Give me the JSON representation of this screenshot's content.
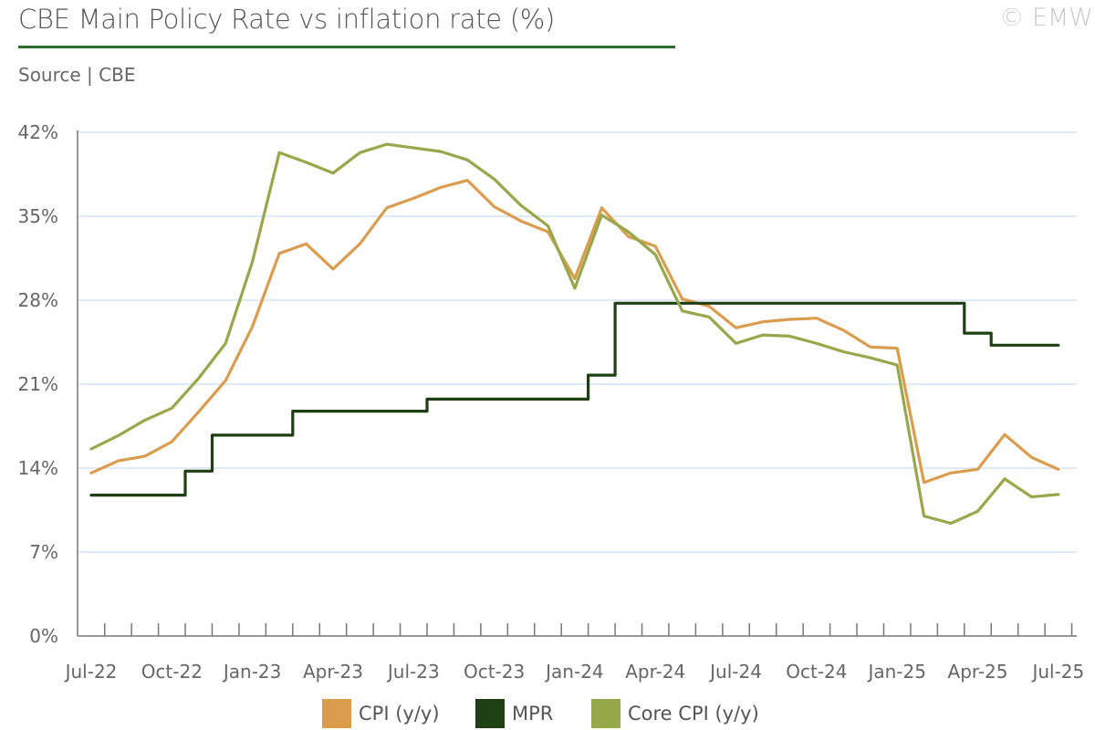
{
  "header": {
    "title": "CBE Main Policy Rate vs inflation rate (%)",
    "subtitle": "Source | CBE",
    "copyright": "© EMW"
  },
  "colors": {
    "cpi": "#dc9c4e",
    "mpr": "#1e3f12",
    "core": "#96a84a",
    "grid": "#d5e3ee",
    "axis": "#777777",
    "title_rule": "#2e6b2e"
  },
  "chart_data": {
    "type": "line",
    "title": "CBE Main Policy Rate vs inflation rate (%)",
    "xlabel": "",
    "ylabel": "",
    "ylim": [
      0,
      42
    ],
    "y_ticks": [
      "0%",
      "7%",
      "14%",
      "21%",
      "28%",
      "35%",
      "42%"
    ],
    "y_tick_values": [
      0,
      7,
      14,
      21,
      28,
      35,
      42
    ],
    "grid": true,
    "legend_position": "bottom",
    "x_tick_labels": [
      "Jul-22",
      "Oct-22",
      "Jan-23",
      "Apr-23",
      "Jul-23",
      "Oct-23",
      "Jan-24",
      "Apr-24",
      "Jul-24",
      "Oct-24",
      "Jan-25",
      "Apr-25",
      "Jul-25"
    ],
    "categories": [
      "Jul-22",
      "Aug-22",
      "Sep-22",
      "Oct-22",
      "Nov-22",
      "Dec-22",
      "Jan-23",
      "Feb-23",
      "Mar-23",
      "Apr-23",
      "May-23",
      "Jun-23",
      "Jul-23",
      "Aug-23",
      "Sep-23",
      "Oct-23",
      "Nov-23",
      "Dec-23",
      "Jan-24",
      "Feb-24",
      "Mar-24",
      "Apr-24",
      "May-24",
      "Jun-24",
      "Jul-24",
      "Aug-24",
      "Sep-24",
      "Oct-24",
      "Nov-24",
      "Dec-24",
      "Jan-25",
      "Feb-25",
      "Mar-25",
      "Apr-25",
      "May-25",
      "Jun-25",
      "Jul-25"
    ],
    "series": [
      {
        "name": "CPI (y/y)",
        "color": "#dc9c4e",
        "style": "line",
        "values": [
          13.6,
          14.6,
          15.0,
          16.2,
          18.7,
          21.3,
          25.8,
          31.9,
          32.7,
          30.6,
          32.7,
          35.7,
          36.5,
          37.4,
          38.0,
          35.8,
          34.6,
          33.7,
          29.8,
          35.7,
          33.3,
          32.5,
          28.1,
          27.5,
          25.7,
          26.2,
          26.4,
          26.5,
          25.5,
          24.1,
          24.0,
          12.8,
          13.6,
          13.9,
          16.8,
          14.9,
          13.9
        ]
      },
      {
        "name": "MPR",
        "color": "#1e3f12",
        "style": "step",
        "values": [
          11.75,
          11.75,
          11.75,
          11.75,
          13.75,
          16.75,
          16.75,
          16.75,
          18.75,
          18.75,
          18.75,
          18.75,
          18.75,
          19.75,
          19.75,
          19.75,
          19.75,
          19.75,
          19.75,
          21.75,
          27.75,
          27.75,
          27.75,
          27.75,
          27.75,
          27.75,
          27.75,
          27.75,
          27.75,
          27.75,
          27.75,
          27.75,
          27.75,
          25.25,
          24.25,
          24.25,
          24.25
        ]
      },
      {
        "name": "Core CPI (y/y)",
        "color": "#96a84a",
        "style": "line",
        "values": [
          15.6,
          16.7,
          18.0,
          19.0,
          21.5,
          24.4,
          31.2,
          40.3,
          39.5,
          38.6,
          40.3,
          41.0,
          40.7,
          40.4,
          39.7,
          38.1,
          35.9,
          34.2,
          29.0,
          35.1,
          33.7,
          31.8,
          27.1,
          26.6,
          24.4,
          25.1,
          25.0,
          24.4,
          23.7,
          23.2,
          22.6,
          10.0,
          9.4,
          10.4,
          13.1,
          11.6,
          11.8
        ]
      }
    ]
  }
}
